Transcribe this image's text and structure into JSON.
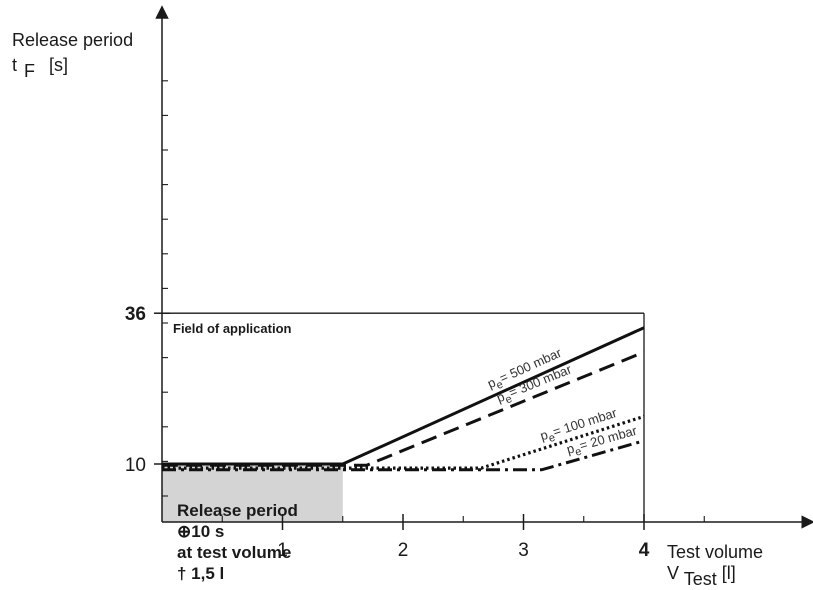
{
  "chart_data": {
    "type": "line",
    "y_axis": {
      "label_line1": "Release period",
      "label_line2_main": "t",
      "label_line2_sub": "F",
      "label_line2_unit": "[s]",
      "ticks": [
        {
          "value": 10,
          "label": "10",
          "bold": false
        },
        {
          "value": 36,
          "label": "36",
          "bold": true
        }
      ]
    },
    "x_axis": {
      "label_line1": "Test volume",
      "label_line2_main": "V",
      "label_line2_sub": "Test",
      "label_line2_unit": "[l]",
      "ticks": [
        {
          "value": 1,
          "label": "1",
          "bold": false
        },
        {
          "value": 2,
          "label": "2",
          "bold": false
        },
        {
          "value": 3,
          "label": "3",
          "bold": false
        },
        {
          "value": 4,
          "label": "4",
          "bold": true
        }
      ]
    },
    "field_label": "Field of application",
    "shaded_region": {
      "x_max": 1.5,
      "y_max": 10,
      "text": [
        "Release period",
        "⊕10 s",
        "at test volume",
        "† 1,5 l"
      ]
    },
    "series": [
      {
        "name_main": "p",
        "name_sub": "e",
        "name_rest": "= 500 mbar",
        "style": "solid",
        "points": [
          [
            0,
            10
          ],
          [
            1.5,
            10
          ],
          [
            4,
            33.5
          ]
        ]
      },
      {
        "name_main": "p",
        "name_sub": "e",
        "name_rest": "= 300 mbar",
        "style": "dashed",
        "points": [
          [
            0,
            9.8
          ],
          [
            1.7,
            9.8
          ],
          [
            4,
            29.3
          ]
        ]
      },
      {
        "name_main": "p",
        "name_sub": "e",
        "name_rest": "= 100 mbar",
        "style": "dotted",
        "points": [
          [
            0,
            9.3
          ],
          [
            2.65,
            9.3
          ],
          [
            4,
            18.2
          ]
        ]
      },
      {
        "name_main": "p",
        "name_sub": "e",
        "name_rest": "= 20 mbar",
        "style": "dashdot",
        "points": [
          [
            0,
            9.0
          ],
          [
            3.15,
            9.0
          ],
          [
            4,
            14.0
          ]
        ]
      }
    ]
  }
}
